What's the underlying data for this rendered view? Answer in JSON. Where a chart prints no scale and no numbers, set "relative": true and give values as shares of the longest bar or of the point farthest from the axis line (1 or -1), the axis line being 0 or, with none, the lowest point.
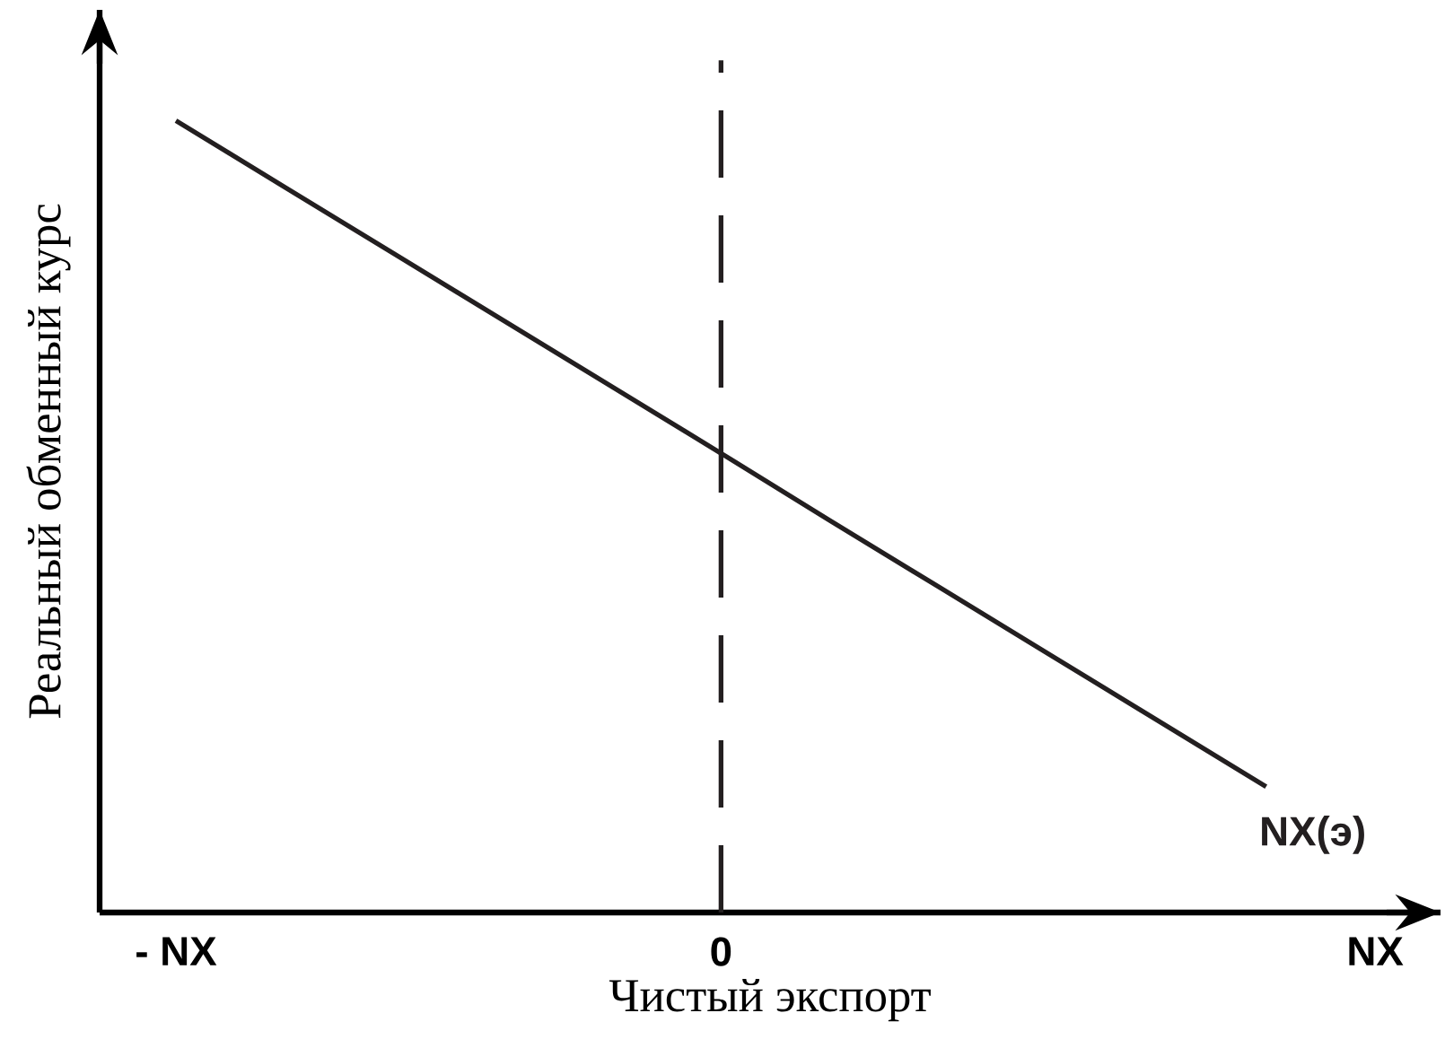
{
  "chart_data": {
    "type": "line",
    "relative": true,
    "xlabel": "Чистый экспорт",
    "ylabel": "Реальный обменный курс",
    "categories": [
      "- NX",
      null,
      null,
      null,
      null,
      "0",
      null,
      null,
      null,
      null,
      null,
      "NX"
    ],
    "tick_labels": "x",
    "line_style": "solid",
    "series": [
      {
        "name": "NX(э)",
        "color": "#231f20",
        "values": [
          1,
          0.916,
          0.832,
          0.748,
          0.664,
          0.58,
          0.495,
          0.411,
          0.327,
          0.243,
          0.159,
          null
        ]
      }
    ],
    "ref_lines": [
      {
        "axis": "x",
        "value": "0",
        "line_style": "dashed",
        "color": "#231f20"
      }
    ]
  }
}
